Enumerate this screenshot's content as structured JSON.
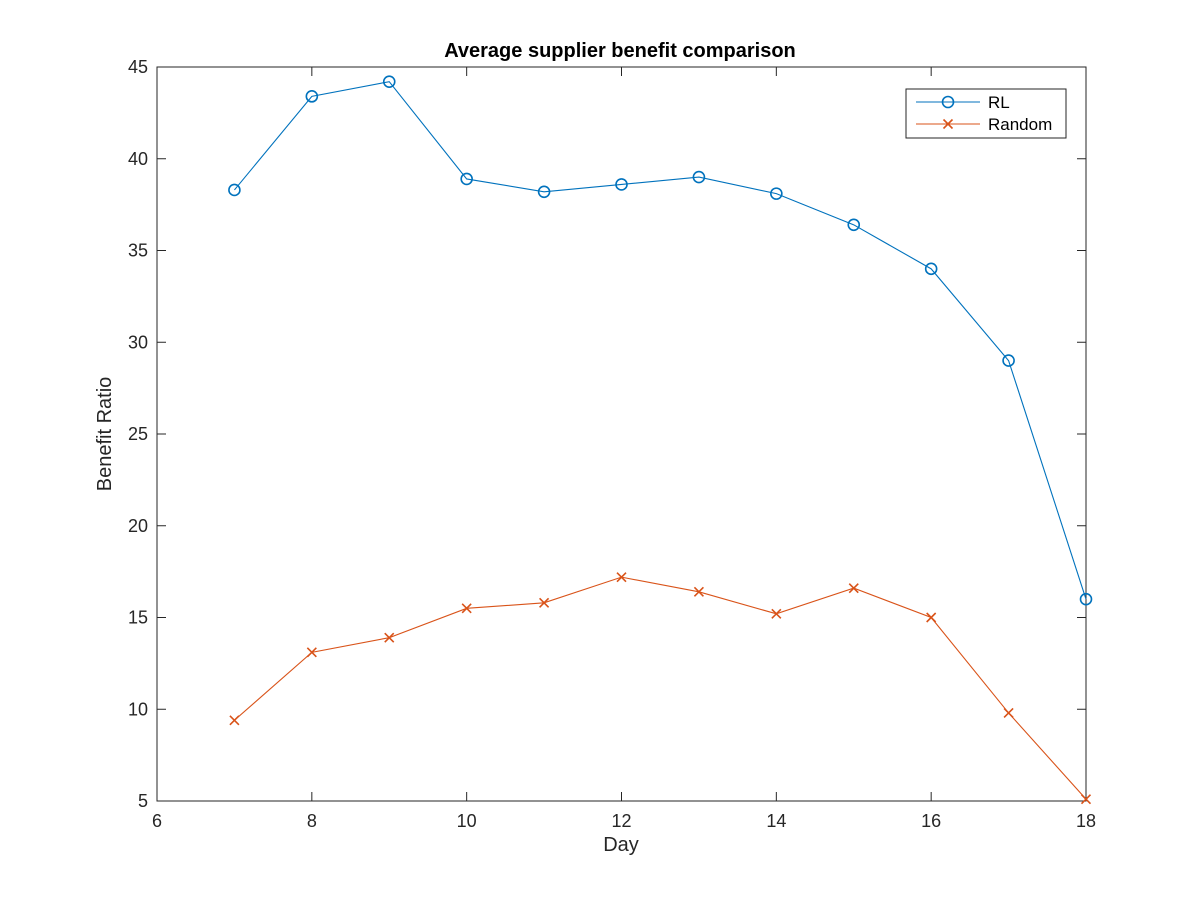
{
  "chart_data": {
    "type": "line",
    "title": "Average supplier benefit comparison",
    "xlabel": "Day",
    "ylabel": "Benefit Ratio",
    "xlim": [
      6,
      18
    ],
    "ylim": [
      5,
      45
    ],
    "xticks": [
      6,
      8,
      10,
      12,
      14,
      16,
      18
    ],
    "yticks": [
      5,
      10,
      15,
      20,
      25,
      30,
      35,
      40,
      45
    ],
    "grid": false,
    "legend_position": "top-right",
    "x": [
      7,
      8,
      9,
      10,
      11,
      12,
      13,
      14,
      15,
      16,
      17,
      18
    ],
    "series": [
      {
        "name": "RL",
        "marker": "circle",
        "color": "#0072BD",
        "values": [
          38.3,
          43.4,
          44.2,
          38.9,
          38.2,
          38.6,
          39.0,
          38.1,
          36.4,
          34.0,
          29.0,
          16.0
        ]
      },
      {
        "name": "Random",
        "marker": "x",
        "color": "#D95319",
        "values": [
          9.4,
          13.1,
          13.9,
          15.5,
          15.8,
          17.2,
          16.4,
          15.2,
          16.6,
          15.0,
          9.8,
          5.1
        ]
      }
    ]
  }
}
